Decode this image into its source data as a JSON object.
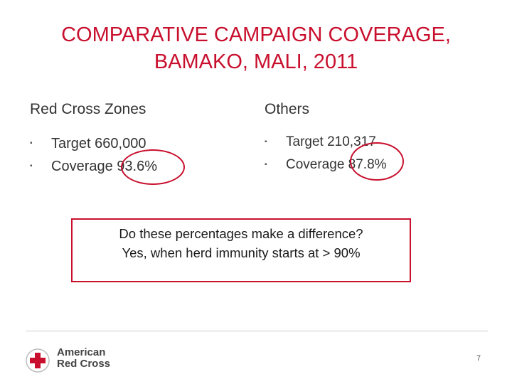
{
  "title": {
    "line1": "COMPARATIVE CAMPAIGN COVERAGE,",
    "line2": "BAMAKO, MALI, 2011"
  },
  "left_column": {
    "heading": "Red Cross Zones",
    "items": [
      "Target 660,000",
      "Coverage 93.6%"
    ]
  },
  "right_column": {
    "heading": "Others",
    "items": [
      "Target 210,317",
      "Coverage 87.8%"
    ]
  },
  "bullet_symbol": "▪",
  "callout": {
    "line1": "Do these percentages make a difference?",
    "line2": "Yes, when herd immunity starts at > 90%"
  },
  "footer": {
    "logo_line1": "American",
    "logo_line2": "Red Cross",
    "page_number": "7"
  },
  "colors": {
    "accent": "#c8102e"
  }
}
